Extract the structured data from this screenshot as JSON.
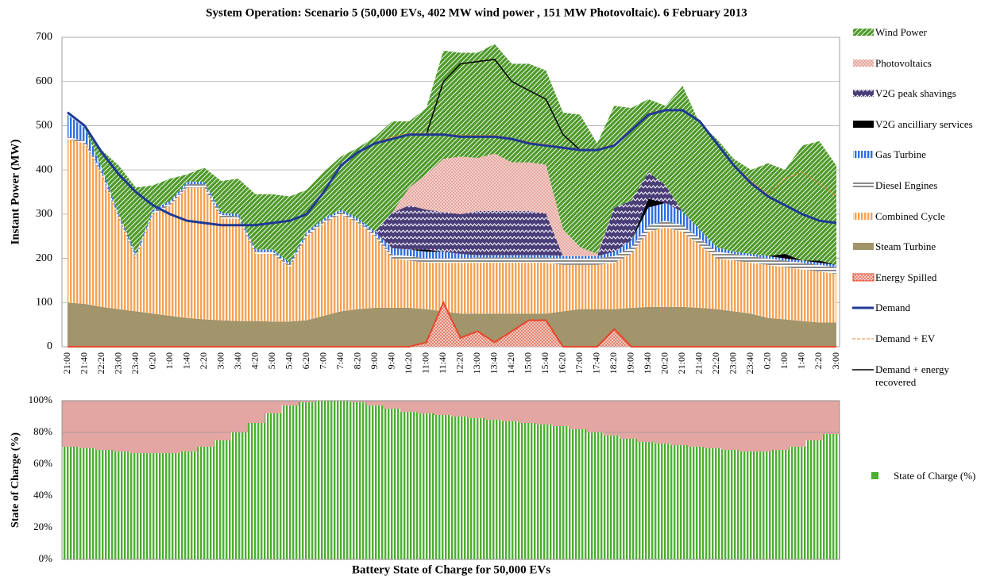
{
  "chart_data": [
    {
      "type": "area",
      "title": "System Operation: Scenario 5 (50,000 EVs, 402 MW wind power , 151 MW Photovoltaic). 6 February 2013",
      "ylabel": "Instant Power (MW)",
      "categories": [
        "21:00",
        "21:40",
        "22:20",
        "23:00",
        "23:40",
        "0:20",
        "1:00",
        "1:40",
        "2:20",
        "3:00",
        "3:40",
        "4:20",
        "5:00",
        "5:40",
        "6:20",
        "7:00",
        "7:40",
        "8:20",
        "9:00",
        "9:40",
        "10:20",
        "11:00",
        "11:40",
        "12:20",
        "13:00",
        "13:40",
        "14:20",
        "15:00",
        "15:40",
        "16:20",
        "17:00",
        "17:40",
        "18:20",
        "19:00",
        "19:40",
        "20:20",
        "21:00",
        "21:40",
        "22:20",
        "23:00",
        "23:40",
        "0:20",
        "1:00",
        "1:40",
        "2:20",
        "3:00"
      ],
      "ylim": [
        0,
        700
      ],
      "yticks": [
        0,
        100,
        200,
        300,
        400,
        500,
        600,
        700
      ],
      "grid": true,
      "series": [
        {
          "name": "Wind Power",
          "type": "stacked-area",
          "pattern": "diagonal",
          "color": "#4e9a2a",
          "values": [
            0,
            0,
            40,
            110,
            150,
            55,
            50,
            17,
            32,
            72,
            80,
            125,
            125,
            150,
            95,
            105,
            120,
            160,
            215,
            207,
            150,
            150,
            245,
            235,
            238,
            248,
            223,
            223,
            213,
            265,
            300,
            250,
            230,
            210,
            165,
            180,
            285,
            240,
            245,
            210,
            190,
            210,
            190,
            260,
            270,
            225
          ]
        },
        {
          "name": "Photovoltaics",
          "type": "stacked-area",
          "pattern": "dots",
          "color": "#d98a80",
          "values": [
            0,
            0,
            0,
            0,
            0,
            0,
            0,
            0,
            0,
            0,
            0,
            0,
            0,
            0,
            0,
            0,
            0,
            0,
            0,
            0,
            40,
            80,
            120,
            130,
            120,
            130,
            110,
            110,
            110,
            60,
            20,
            5,
            0,
            0,
            0,
            0,
            0,
            0,
            0,
            0,
            0,
            0,
            0,
            0,
            0,
            0
          ]
        },
        {
          "name": "V2G peak shavings",
          "type": "stacked-area",
          "pattern": "zigzag",
          "color": "#4a3d78",
          "values": [
            0,
            0,
            0,
            0,
            0,
            0,
            0,
            0,
            0,
            0,
            0,
            0,
            0,
            0,
            0,
            0,
            0,
            0,
            0,
            80,
            100,
            90,
            90,
            90,
            100,
            100,
            100,
            100,
            95,
            0,
            0,
            0,
            100,
            90,
            60,
            40,
            0,
            0,
            0,
            0,
            0,
            0,
            0,
            0,
            0,
            0
          ]
        },
        {
          "name": "V2G ancilliary services",
          "type": "stacked-area",
          "pattern": "solid",
          "color": "#000000",
          "values": [
            0,
            0,
            0,
            0,
            0,
            0,
            0,
            0,
            0,
            0,
            0,
            0,
            0,
            0,
            0,
            0,
            0,
            0,
            0,
            0,
            0,
            5,
            0,
            0,
            0,
            0,
            0,
            0,
            0,
            0,
            0,
            0,
            0,
            0,
            20,
            0,
            0,
            0,
            0,
            0,
            0,
            0,
            10,
            0,
            5,
            0
          ]
        },
        {
          "name": "Gas Turbine",
          "type": "stacked-area",
          "pattern": "vstripe",
          "color": "#2f6fe0",
          "values": [
            50,
            30,
            10,
            5,
            5,
            5,
            5,
            5,
            5,
            5,
            5,
            5,
            5,
            5,
            5,
            5,
            5,
            5,
            5,
            15,
            15,
            15,
            15,
            10,
            5,
            5,
            5,
            5,
            5,
            5,
            5,
            5,
            10,
            15,
            40,
            40,
            30,
            20,
            10,
            5,
            5,
            5,
            5,
            5,
            5,
            5
          ]
        },
        {
          "name": "Diesel Engines",
          "type": "stacked-area",
          "pattern": "hstripe",
          "color": "#8c8c8c",
          "values": [
            5,
            5,
            5,
            5,
            5,
            5,
            5,
            8,
            8,
            8,
            5,
            5,
            5,
            5,
            5,
            5,
            5,
            5,
            5,
            8,
            10,
            10,
            10,
            10,
            12,
            12,
            12,
            12,
            12,
            15,
            15,
            15,
            15,
            15,
            15,
            15,
            15,
            15,
            15,
            15,
            15,
            15,
            15,
            15,
            15,
            15
          ]
        },
        {
          "name": "Combined Cycle",
          "type": "stacked-area",
          "pattern": "vstripe",
          "color": "#f5a253",
          "values": [
            370,
            363,
            300,
            205,
            120,
            225,
            250,
            295,
            298,
            230,
            232,
            152,
            153,
            123,
            190,
            210,
            220,
            195,
            162,
            112,
            107,
            105,
            110,
            115,
            115,
            115,
            115,
            115,
            115,
            105,
            100,
            100,
            105,
            122,
            170,
            180,
            170,
            142,
            115,
            115,
            115,
            120,
            118,
            117,
            115,
            110
          ]
        },
        {
          "name": "Steam Turbine",
          "type": "stacked-area",
          "pattern": "solid",
          "color": "#a2946b",
          "values": [
            100,
            97,
            90,
            85,
            80,
            75,
            70,
            65,
            62,
            60,
            58,
            58,
            57,
            57,
            60,
            70,
            80,
            85,
            88,
            88,
            88,
            85,
            80,
            75,
            75,
            75,
            75,
            75,
            75,
            80,
            85,
            85,
            85,
            88,
            90,
            90,
            90,
            88,
            85,
            80,
            75,
            65,
            62,
            58,
            55,
            55
          ]
        },
        {
          "name": "Energy Spilled",
          "type": "area",
          "pattern": "dots",
          "color": "#e8462a",
          "values": [
            0,
            0,
            0,
            0,
            0,
            0,
            0,
            0,
            0,
            0,
            0,
            0,
            0,
            0,
            0,
            0,
            0,
            0,
            0,
            0,
            0,
            10,
            100,
            20,
            35,
            10,
            35,
            60,
            60,
            0,
            0,
            0,
            40,
            0,
            0,
            0,
            0,
            0,
            0,
            0,
            0,
            0,
            0,
            0,
            0,
            0
          ]
        },
        {
          "name": "Demand",
          "type": "line",
          "width": 3,
          "color": "#1f3a93",
          "values": [
            530,
            500,
            440,
            390,
            350,
            320,
            300,
            285,
            280,
            275,
            275,
            275,
            280,
            285,
            300,
            350,
            410,
            440,
            460,
            470,
            480,
            480,
            480,
            475,
            475,
            475,
            470,
            460,
            455,
            450,
            445,
            445,
            455,
            490,
            525,
            535,
            535,
            510,
            460,
            410,
            370,
            340,
            320,
            300,
            285,
            280
          ]
        },
        {
          "name": "Demand + EV",
          "type": "line",
          "width": 1,
          "dash": true,
          "color": "#e8802a",
          "values": [
            530,
            500,
            440,
            390,
            350,
            320,
            300,
            285,
            280,
            275,
            275,
            275,
            280,
            285,
            300,
            350,
            410,
            440,
            462,
            475,
            483,
            483,
            482,
            478,
            478,
            478,
            472,
            463,
            458,
            452,
            447,
            447,
            458,
            493,
            528,
            537,
            537,
            512,
            462,
            412,
            375,
            345,
            380,
            395,
            370,
            340
          ]
        },
        {
          "name": "Demand + energy recovered",
          "type": "line",
          "width": 1.5,
          "color": "#000000",
          "values": [
            530,
            500,
            440,
            390,
            350,
            320,
            300,
            285,
            280,
            275,
            275,
            275,
            280,
            285,
            300,
            350,
            410,
            440,
            460,
            470,
            480,
            480,
            600,
            640,
            645,
            650,
            600,
            580,
            560,
            480,
            445,
            445,
            455,
            490,
            525,
            535,
            535,
            510,
            460,
            410,
            370,
            340,
            320,
            300,
            285,
            280
          ]
        }
      ]
    },
    {
      "type": "bar",
      "title": "Battery State of Charge for 50,000 EVs",
      "ylabel": "State of Charge (%)",
      "ylim": [
        0,
        100
      ],
      "yticks": [
        {
          "value": 0,
          "label": "0%"
        },
        {
          "value": 20,
          "label": "20%"
        },
        {
          "value": 40,
          "label": "40%"
        },
        {
          "value": 60,
          "label": "60%"
        },
        {
          "value": 80,
          "label": "80%"
        },
        {
          "value": 100,
          "label": "100%"
        }
      ],
      "grid": true,
      "background": "#e3a6a2",
      "series": [
        {
          "name": "State of Charge (%)",
          "color": "#4caf30",
          "values": [
            71,
            70,
            69,
            68,
            67,
            67,
            67,
            68,
            71,
            75,
            80,
            86,
            92,
            97,
            99,
            100,
            100,
            99,
            97,
            95,
            93,
            92,
            91,
            90,
            89,
            88,
            87,
            86,
            85,
            84,
            82,
            80,
            78,
            76,
            74,
            73,
            72,
            71,
            70,
            69,
            68,
            68,
            69,
            71,
            75,
            79
          ]
        }
      ]
    }
  ]
}
